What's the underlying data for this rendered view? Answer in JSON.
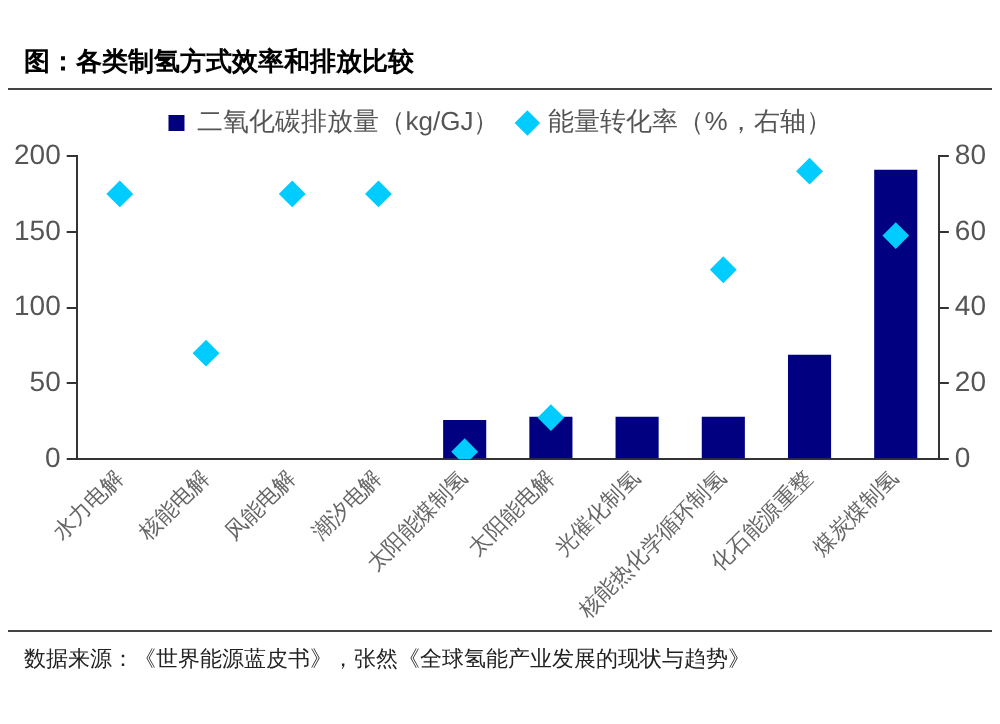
{
  "chart_data": {
    "type": "bar",
    "title": "图：各类制氢方式效率和排放比较",
    "categories": [
      "水力电解",
      "核能电解",
      "风能电解",
      "潮汐电解",
      "太阳能煤制氢",
      "太阳能电解",
      "光催化制氢",
      "核能热化学循环制氢",
      "化石能源重整",
      "煤炭煤制氢"
    ],
    "series": [
      {
        "name": "二氧化碳排放量（kg/GJ）",
        "color": "#000080",
        "values": [
          0,
          0,
          0,
          0,
          26,
          28,
          28,
          28,
          69,
          191
        ]
      },
      {
        "name": "能量转化率（%，右轴）",
        "type": "scatter",
        "axis": "y2",
        "marker": "diamond",
        "color": "#00ccff",
        "values": [
          70,
          28,
          70,
          70,
          2,
          11,
          null,
          50,
          76,
          59
        ]
      }
    ],
    "ylim": [
      0,
      200
    ],
    "yticks": [
      0,
      50,
      100,
      150,
      200
    ],
    "y2lim": [
      0,
      80
    ],
    "y2ticks": [
      0,
      20,
      40,
      60,
      80
    ],
    "grid": false,
    "legend": "top",
    "annotations": [
      "数据来源：《世界能源蓝皮书》，张然《全球氢能产业发展的现状与趋势》"
    ]
  }
}
